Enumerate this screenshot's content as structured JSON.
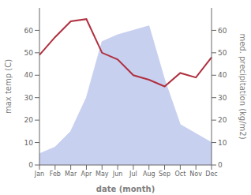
{
  "chart_data": {
    "type": "line",
    "categories": [
      "Jan",
      "Feb",
      "Mar",
      "Apr",
      "May",
      "Jun",
      "Jul",
      "Aug",
      "Sep",
      "Oct",
      "Nov",
      "Dec"
    ],
    "xlabel": "date (month)",
    "ylabel": "max temp (C)",
    "y2label": "med. precipitation (kg/m2)",
    "series": [
      {
        "type": "area",
        "axis": "y2",
        "color": "#c8d0f0",
        "values": [
          5,
          8,
          15,
          30,
          55,
          58,
          60,
          62,
          38,
          18,
          14,
          10
        ]
      },
      {
        "type": "line",
        "axis": "y",
        "color": "#b03040",
        "values": [
          49,
          57,
          64,
          65,
          50,
          47,
          40,
          38,
          35,
          41,
          39,
          48
        ]
      }
    ],
    "ylim": [
      0,
      70
    ],
    "yticks": [
      0,
      10,
      20,
      30,
      40,
      50,
      60
    ],
    "y2lim": [
      0,
      70
    ],
    "y2ticks": [
      0,
      10,
      20,
      30,
      40,
      50,
      60
    ],
    "grid": false
  }
}
